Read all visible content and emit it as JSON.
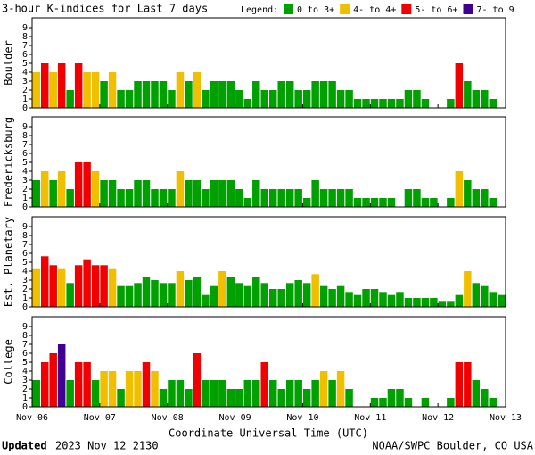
{
  "chart_data": {
    "type": "bar",
    "title": "3-hour K-indices for Last 7 days",
    "legend_title": "Legend:",
    "legend": [
      {
        "label": "0 to 3+",
        "color": "#00a000"
      },
      {
        "label": "4- to 4+",
        "color": "#f0c000"
      },
      {
        "label": "5- to 6+",
        "color": "#f00000"
      },
      {
        "label": "7- to 9",
        "color": "#400090"
      }
    ],
    "xlabel": "Coordinate Universal Time (UTC)",
    "xticks": [
      "Nov 06",
      "Nov 07",
      "Nov 08",
      "Nov 09",
      "Nov 10",
      "Nov 11",
      "Nov 12",
      "Nov 13"
    ],
    "ylim": [
      0,
      9
    ],
    "yticks": [
      0,
      1,
      2,
      3,
      4,
      5,
      6,
      7,
      8,
      9
    ],
    "panels": [
      {
        "name": "Boulder",
        "values": [
          4,
          5,
          4,
          5,
          2,
          5,
          4,
          4,
          3,
          4,
          2,
          2,
          3,
          3,
          3,
          3,
          2,
          4,
          3,
          4,
          2,
          3,
          3,
          3,
          2,
          1,
          3,
          2,
          2,
          3,
          3,
          2,
          2,
          3,
          3,
          3,
          2,
          2,
          1,
          1,
          1,
          1,
          1,
          1,
          2,
          2,
          1,
          0,
          0,
          1,
          5,
          3,
          2,
          2,
          1,
          0
        ]
      },
      {
        "name": "Fredericksburg",
        "values": [
          3,
          4,
          3,
          4,
          2,
          5,
          5,
          4,
          3,
          3,
          2,
          2,
          3,
          3,
          2,
          2,
          2,
          4,
          3,
          3,
          2,
          3,
          3,
          3,
          2,
          1,
          3,
          2,
          2,
          2,
          2,
          2,
          1,
          3,
          2,
          2,
          2,
          2,
          1,
          1,
          1,
          1,
          1,
          0,
          2,
          2,
          1,
          1,
          0,
          1,
          4,
          3,
          2,
          2,
          1,
          0
        ]
      },
      {
        "name": "Est. Planetary",
        "values": [
          4.33,
          5.67,
          4.67,
          4.33,
          2.67,
          4.67,
          5.33,
          4.67,
          4.67,
          4.33,
          2.33,
          2.33,
          2.67,
          3.33,
          3,
          2.67,
          2.67,
          4,
          3,
          3.33,
          1.33,
          2.33,
          4,
          3.33,
          2.67,
          2.33,
          3.33,
          2.67,
          2,
          2,
          2.67,
          3,
          2.67,
          3.67,
          2.33,
          2,
          2.33,
          1.67,
          1.33,
          2,
          2,
          1.67,
          1.33,
          1.67,
          1,
          1,
          1,
          1,
          0.67,
          0.67,
          1.33,
          4,
          2.67,
          2.33,
          1.67,
          1.33
        ]
      },
      {
        "name": "College",
        "values": [
          3,
          5,
          6,
          7,
          3,
          5,
          5,
          3,
          4,
          4,
          2,
          4,
          4,
          5,
          4,
          2,
          3,
          3,
          2,
          6,
          3,
          3,
          3,
          2,
          2,
          3,
          3,
          5,
          3,
          2,
          3,
          3,
          2,
          3,
          4,
          3,
          4,
          2,
          0,
          0,
          1,
          1,
          2,
          2,
          1,
          0,
          1,
          0,
          0,
          1,
          5,
          5,
          3,
          2,
          1,
          0
        ]
      }
    ]
  },
  "footer": {
    "updated_label": "Updated",
    "updated": "2023 Nov 12 2130",
    "credit": "NOAA/SWPC Boulder, CO USA"
  }
}
